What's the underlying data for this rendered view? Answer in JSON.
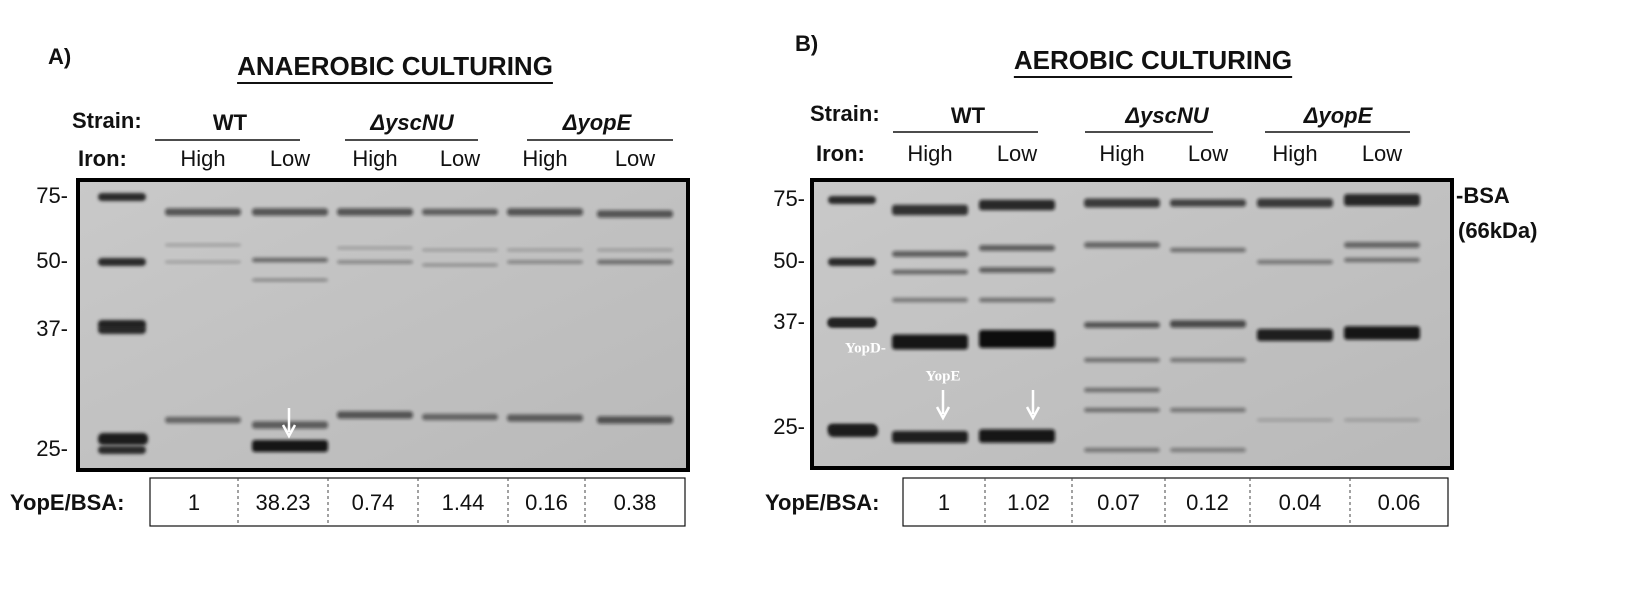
{
  "panels": [
    {
      "label": "A)",
      "title": "ANAEROBIC CULTURING",
      "strain_label": "Strain:",
      "strains": [
        "WT",
        "ΔyscNU",
        "ΔyopE"
      ],
      "iron_label": "Iron:",
      "iron": [
        "High",
        "Low",
        "High",
        "Low",
        "High",
        "Low"
      ],
      "markers": [
        "75-",
        "50-",
        "37-",
        "25-"
      ],
      "ratio_label": "YopE/BSA:",
      "ratios": [
        "1",
        "38.23",
        "0.74",
        "1.44",
        "0.16",
        "0.38"
      ]
    },
    {
      "label": "B)",
      "title": "AEROBIC CULTURING",
      "strain_label": "Strain:",
      "strains": [
        "WT",
        "ΔyscNU",
        "ΔyopE"
      ],
      "iron_label": "Iron:",
      "iron": [
        "High",
        "Low",
        "High",
        "Low",
        "High",
        "Low"
      ],
      "markers": [
        "75-",
        "50-",
        "37-",
        "25-"
      ],
      "ratio_label": "YopE/BSA:",
      "ratios": [
        "1",
        "1.02",
        "0.07",
        "0.12",
        "0.04",
        "0.06"
      ],
      "annotations": {
        "bsa": "-BSA",
        "bsa_size": "(66kDa)",
        "yopd": "YopD-",
        "yope": "YopE"
      }
    }
  ]
}
